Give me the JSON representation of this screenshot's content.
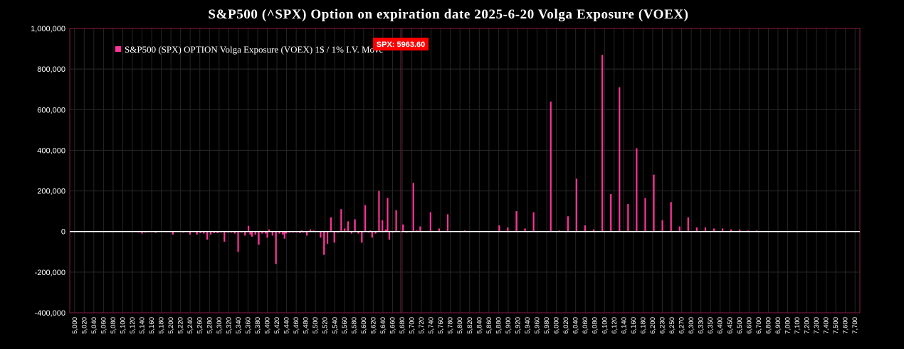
{
  "chart_data": {
    "type": "bar",
    "title": "S&P500 (^SPX) Option on expiration date 2025-6-20 Volga Exposure (VOEX)",
    "series": [
      {
        "name": "S&P500 (SPX) OPTION Volga Exposure (VOEX) 1$ / 1% I.V. Move",
        "color": "#ff3399",
        "x": [
          5100,
          5200,
          5210,
          5220,
          5230,
          5250,
          5280,
          5300,
          5330,
          5350,
          5370,
          5380,
          5390,
          5400,
          5410,
          5420,
          5430,
          5440,
          5450,
          5460,
          5470,
          5480,
          5490,
          5500,
          5510,
          5520,
          5525,
          5530,
          5540,
          5550,
          5560,
          5570,
          5575,
          5580,
          5590,
          5600,
          5610,
          5620,
          5625,
          5630,
          5640,
          5650,
          5660,
          5670,
          5675,
          5680,
          5690,
          5700,
          5710,
          5730,
          5740,
          5750,
          5760,
          5770,
          5780,
          5790,
          5800,
          5810,
          5820,
          5830,
          5840,
          5850,
          5860,
          5870,
          5875,
          5880,
          5890,
          5900,
          5910,
          5920,
          5925,
          5930,
          5940,
          5950,
          5970,
          5980,
          6000,
          6010,
          6020,
          6050,
          6075,
          6100,
          6150,
          6250,
          6275,
          6300,
          6325,
          6350,
          6400,
          6425,
          6450,
          6475,
          6500,
          6525,
          6550,
          6575,
          6600,
          6625,
          6650,
          6675,
          6700,
          6725,
          6750,
          6775,
          6800,
          6825,
          6850,
          6875,
          6900,
          6925,
          6950,
          6975,
          7000
        ],
        "values": [
          -3000,
          -4000,
          -10000,
          -5000,
          -3000,
          -6000,
          -2000,
          -15000,
          -5000,
          -15000,
          -15000,
          -8000,
          -10000,
          -40000,
          -15000,
          -8000,
          -8000,
          -5000,
          -50000,
          -5000,
          -5000,
          -10000,
          -100000,
          -5000,
          -20000,
          28000,
          -15000,
          -25000,
          -15000,
          -65000,
          -10000,
          -10000,
          -30000,
          10000,
          -20000,
          -160000,
          -10000,
          -15000,
          -35000,
          -10000,
          -5000,
          -5000,
          -5000,
          -8000,
          5000,
          -5000,
          -20000,
          10000,
          5000,
          -30000,
          -115000,
          -60000,
          70000,
          -55000,
          -5000,
          110000,
          15000,
          50000,
          -10000,
          60000,
          -10000,
          -55000,
          130000,
          -5000,
          5000,
          -30000,
          -10000,
          200000,
          55000,
          10000,
          165000,
          -40000,
          -5000,
          105000,
          35000,
          -5000,
          240000,
          5000,
          25000,
          95000,
          15000,
          85000,
          5000,
          30000,
          20000,
          100000,
          15000,
          95000,
          640000,
          5000,
          75000,
          260000,
          30000,
          10000,
          870000,
          185000,
          710000,
          135000,
          410000,
          165000,
          280000,
          55000,
          145000,
          25000,
          70000,
          20000,
          20000,
          15000,
          15000,
          10000,
          10000,
          5000,
          5000
        ]
      }
    ],
    "xlim": [
      5000,
      7300
    ],
    "ylim": [
      -400000,
      1000000
    ],
    "x_ticks": [
      "5,000",
      "5,020",
      "5,040",
      "5,060",
      "5,080",
      "5,100",
      "5,120",
      "5,140",
      "5,160",
      "5,180",
      "5,200",
      "5,220",
      "5,240",
      "5,260",
      "5,280",
      "5,300",
      "5,320",
      "5,340",
      "5,360",
      "5,380",
      "5,400",
      "5,420",
      "5,440",
      "5,460",
      "5,480",
      "5,500",
      "5,520",
      "5,540",
      "5,560",
      "5,580",
      "5,600",
      "5,620",
      "5,640",
      "5,660",
      "5,680",
      "5,700",
      "5,720",
      "5,740",
      "5,760",
      "5,780",
      "5,800",
      "5,820",
      "5,840",
      "5,860",
      "5,880",
      "5,900",
      "5,920",
      "5,940",
      "5,960",
      "5,980",
      "6,000",
      "6,020",
      "6,040",
      "6,060",
      "6,080",
      "6,100",
      "6,120",
      "6,140",
      "6,160",
      "6,180",
      "6,200",
      "6,230",
      "6,250",
      "6,270",
      "6,300",
      "6,330",
      "6,350",
      "6,400",
      "6,450",
      "6,500",
      "6,600",
      "6,700",
      "6,800",
      "6,900",
      "7,000",
      "7,100",
      "7,200",
      "7,300",
      "7,400",
      "7,500",
      "7,600",
      "7,700"
    ],
    "y_ticks": [
      "1,000,000",
      "800,000",
      "600,000",
      "400,000",
      "200,000",
      "0",
      "-200,000",
      "-400,000"
    ],
    "spot_label": "SPX: 5963.60",
    "spot_value": 5963.6,
    "grid": true,
    "legend_position": "top-left"
  }
}
